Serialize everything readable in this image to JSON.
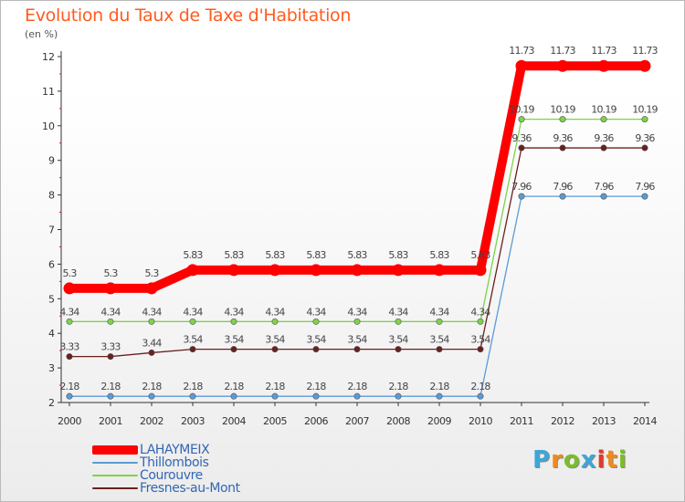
{
  "header": {
    "title": "Evolution du Taux de Taxe d'Habitation",
    "subtitle": "(en %)"
  },
  "chart_data": {
    "type": "line",
    "title": "Evolution du Taux de Taxe d'Habitation",
    "subtitle": "(en %)",
    "xlabel": "",
    "ylabel": "",
    "ylim": [
      2,
      12
    ],
    "yticks": [
      2,
      3,
      4,
      5,
      6,
      7,
      8,
      9,
      10,
      11,
      12
    ],
    "grid": false,
    "legend_position": "bottom-left",
    "categories": [
      "2000",
      "2001",
      "2002",
      "2003",
      "2004",
      "2005",
      "2006",
      "2007",
      "2008",
      "2009",
      "2010",
      "2011",
      "2012",
      "2013",
      "2014"
    ],
    "series": [
      {
        "name": "LAHAYMEIX",
        "color": "#ff0000",
        "values": [
          5.3,
          5.3,
          5.3,
          5.83,
          5.83,
          5.83,
          5.83,
          5.83,
          5.83,
          5.83,
          5.83,
          11.73,
          11.73,
          11.73,
          11.73
        ],
        "labels": [
          "5.3",
          "5.3",
          "5.3",
          "5.83",
          "5.83",
          "5.83",
          "5.83",
          "5.83",
          "5.83",
          "5.83",
          "5.83",
          "11.73",
          "11.73",
          "11.73",
          "11.73"
        ]
      },
      {
        "name": "Thillombois",
        "color": "#5b9bd5",
        "values": [
          2.18,
          2.18,
          2.18,
          2.18,
          2.18,
          2.18,
          2.18,
          2.18,
          2.18,
          2.18,
          2.18,
          7.96,
          7.96,
          7.96,
          7.96
        ],
        "labels": [
          "2.18",
          "2.18",
          "2.18",
          "2.18",
          "2.18",
          "2.18",
          "2.18",
          "2.18",
          "2.18",
          "2.18",
          "2.18",
          "7.96",
          "7.96",
          "7.96",
          "7.96"
        ]
      },
      {
        "name": "Courouvre",
        "color": "#7ed348",
        "values": [
          4.34,
          4.34,
          4.34,
          4.34,
          4.34,
          4.34,
          4.34,
          4.34,
          4.34,
          4.34,
          4.34,
          10.19,
          10.19,
          10.19,
          10.19
        ],
        "labels": [
          "4.34",
          "4.34",
          "4.34",
          "4.34",
          "4.34",
          "4.34",
          "4.34",
          "4.34",
          "4.34",
          "4.34",
          "4.34",
          "10.19",
          "10.19",
          "10.19",
          "10.19"
        ]
      },
      {
        "name": "Fresnes-au-Mont",
        "color": "#6b1f1f",
        "values": [
          3.33,
          3.33,
          3.44,
          3.54,
          3.54,
          3.54,
          3.54,
          3.54,
          3.54,
          3.54,
          3.54,
          9.36,
          9.36,
          9.36,
          9.36
        ],
        "labels": [
          "3.33",
          "3.33",
          "3.44",
          "3.54",
          "3.54",
          "3.54",
          "3.54",
          "3.54",
          "3.54",
          "3.54",
          "3.54",
          "9.36",
          "9.36",
          "9.36",
          "9.36"
        ]
      }
    ]
  },
  "logo": {
    "text": "Proxiti",
    "colors": [
      "#3fa6d6",
      "#f08a1c",
      "#7bbd2a",
      "#3fa6d6",
      "#e23a2a",
      "#f08a1c",
      "#7bbd2a"
    ]
  }
}
